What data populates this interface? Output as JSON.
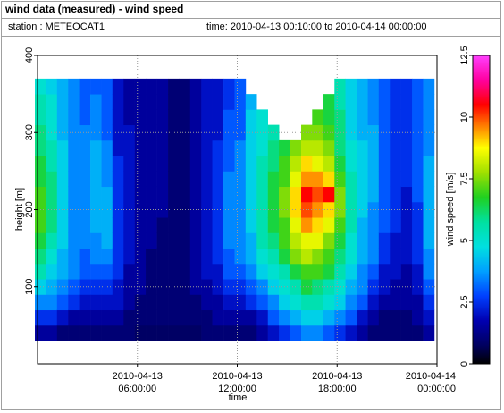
{
  "header": {
    "title": "wind data (measured) - wind speed",
    "station": "station : METEOCAT1",
    "time_range": "time: 2010-04-13 00:10:00 to 2010-04-14 00:00:00"
  },
  "chart_data": {
    "type": "heatmap",
    "title": "wind data (measured) - wind speed",
    "xlabel": "time",
    "ylabel": "height [m]",
    "colorbar_label": "wind speed [m/s]",
    "x_ticks": [
      {
        "hours": 6,
        "label_date": "2010-04-13",
        "label_time": "06:00:00"
      },
      {
        "hours": 12,
        "label_date": "2010-04-13",
        "label_time": "12:00:00"
      },
      {
        "hours": 18,
        "label_date": "2010-04-13",
        "label_time": "18:00:00"
      },
      {
        "hours": 24,
        "label_date": "2010-04-14",
        "label_time": "00:00:00"
      }
    ],
    "xlim_hours": [
      0,
      24
    ],
    "y_ticks": [
      100,
      200,
      300,
      400
    ],
    "ylim": [
      0,
      400
    ],
    "colorbar_ticks": [
      "0",
      "2.5",
      "5",
      "7.5",
      "10",
      "12.5"
    ],
    "colorbar_range": [
      0,
      12.5
    ],
    "grid": true,
    "heights": [
      40,
      60,
      80,
      100,
      120,
      140,
      160,
      180,
      200,
      220,
      240,
      260,
      280,
      300,
      320,
      340,
      360
    ],
    "times_hours": [
      0.17,
      0.83,
      1.5,
      2.17,
      2.83,
      3.5,
      4.17,
      4.83,
      5.5,
      6.17,
      6.83,
      7.5,
      8.17,
      8.83,
      9.5,
      10.17,
      10.83,
      11.5,
      12.17,
      12.83,
      13.5,
      14.17,
      14.83,
      15.5,
      16.17,
      16.83,
      17.5,
      18.17,
      18.83,
      19.5,
      20.17,
      20.83,
      21.5,
      22.17,
      22.83,
      23.5
    ],
    "wind_speed": [
      [
        1.5,
        2.5,
        3.5,
        4.5,
        5.5,
        6.0,
        6.5,
        7.0,
        7.0,
        7.0,
        6.5,
        6.5,
        6.0,
        6.0,
        5.5,
        5.5,
        5.0
      ],
      [
        1.5,
        2.5,
        3.5,
        4.0,
        4.5,
        5.0,
        5.5,
        6.0,
        6.0,
        6.0,
        6.0,
        5.5,
        5.5,
        5.0,
        5.0,
        5.0,
        4.5
      ],
      [
        1.0,
        2.0,
        3.0,
        3.5,
        4.0,
        4.0,
        4.5,
        4.5,
        4.5,
        4.5,
        4.5,
        4.5,
        4.5,
        4.0,
        4.0,
        4.0,
        4.0
      ],
      [
        1.0,
        1.5,
        2.5,
        3.0,
        3.5,
        3.5,
        3.5,
        3.5,
        3.5,
        3.5,
        3.5,
        3.5,
        3.5,
        3.5,
        3.5,
        3.5,
        3.5
      ],
      [
        1.0,
        1.5,
        2.0,
        2.5,
        3.0,
        3.0,
        3.5,
        3.5,
        3.5,
        3.5,
        3.5,
        3.5,
        3.5,
        3.5,
        3.0,
        3.0,
        3.0
      ],
      [
        1.0,
        1.5,
        2.0,
        2.5,
        3.0,
        3.5,
        3.5,
        4.0,
        4.0,
        4.0,
        4.0,
        4.0,
        4.0,
        3.5,
        3.5,
        3.5,
        3.0
      ],
      [
        1.0,
        1.5,
        2.0,
        2.5,
        3.0,
        3.5,
        4.0,
        4.0,
        4.0,
        4.0,
        3.5,
        3.5,
        3.5,
        3.0,
        3.0,
        3.0,
        3.0
      ],
      [
        1.0,
        1.5,
        2.0,
        2.0,
        2.5,
        2.5,
        2.5,
        2.5,
        2.5,
        2.5,
        2.5,
        2.5,
        2.0,
        2.0,
        2.0,
        2.0,
        2.0
      ],
      [
        1.0,
        1.0,
        1.5,
        1.5,
        1.5,
        2.0,
        2.0,
        2.0,
        2.0,
        2.0,
        2.0,
        2.0,
        2.0,
        2.0,
        1.5,
        1.5,
        1.5
      ],
      [
        0.8,
        1.0,
        1.0,
        1.5,
        1.5,
        1.5,
        1.5,
        1.5,
        1.5,
        1.5,
        1.5,
        1.5,
        1.5,
        1.5,
        1.5,
        1.5,
        1.5
      ],
      [
        0.8,
        1.0,
        1.0,
        1.0,
        1.0,
        1.0,
        1.5,
        1.5,
        1.5,
        1.5,
        1.5,
        1.5,
        1.5,
        1.5,
        1.5,
        1.5,
        1.5
      ],
      [
        0.8,
        1.0,
        1.0,
        1.0,
        1.0,
        1.0,
        1.0,
        1.0,
        1.5,
        1.5,
        1.5,
        1.5,
        1.5,
        1.5,
        1.5,
        1.5,
        1.5
      ],
      [
        0.8,
        1.0,
        1.0,
        1.0,
        1.0,
        1.0,
        1.0,
        1.0,
        1.0,
        1.0,
        1.0,
        1.0,
        1.0,
        1.0,
        1.0,
        1.0,
        1.0
      ],
      [
        0.8,
        1.0,
        1.0,
        1.0,
        1.0,
        1.0,
        1.0,
        1.0,
        1.0,
        1.0,
        1.0,
        1.0,
        1.0,
        1.0,
        1.0,
        1.0,
        1.0
      ],
      [
        0.8,
        1.0,
        1.0,
        1.5,
        1.5,
        1.5,
        1.5,
        1.5,
        1.5,
        1.5,
        1.5,
        1.5,
        1.5,
        1.5,
        1.5,
        1.5,
        1.5
      ],
      [
        1.0,
        1.0,
        1.5,
        1.5,
        2.0,
        2.0,
        2.0,
        2.0,
        2.0,
        2.0,
        2.0,
        2.0,
        2.0,
        2.0,
        2.0,
        2.0,
        2.0
      ],
      [
        1.0,
        1.5,
        1.5,
        2.0,
        2.0,
        2.5,
        2.5,
        2.5,
        2.5,
        2.5,
        2.5,
        2.5,
        2.5,
        2.0,
        2.0,
        2.0,
        2.0
      ],
      [
        1.0,
        1.5,
        2.0,
        2.5,
        3.0,
        3.0,
        3.5,
        3.5,
        3.5,
        3.5,
        3.5,
        3.0,
        3.0,
        3.0,
        3.0,
        2.5,
        2.5
      ],
      [
        1.0,
        1.5,
        2.0,
        2.5,
        3.0,
        3.5,
        3.5,
        3.5,
        3.5,
        3.5,
        3.5,
        3.5,
        3.5,
        3.0,
        3.0,
        3.0,
        3.0
      ],
      [
        1.0,
        1.5,
        2.5,
        3.0,
        3.5,
        4.0,
        4.0,
        4.5,
        4.5,
        4.5,
        4.5,
        4.5,
        4.5,
        4.5,
        4.5,
        4.0,
        null
      ],
      [
        1.5,
        2.0,
        3.0,
        3.5,
        4.5,
        5.0,
        5.5,
        5.5,
        5.5,
        5.5,
        5.5,
        5.5,
        5.0,
        5.0,
        5.0,
        null,
        null
      ],
      [
        2.0,
        3.0,
        3.5,
        4.5,
        5.0,
        5.5,
        6.0,
        6.5,
        6.5,
        6.5,
        6.5,
        6.0,
        6.0,
        5.5,
        null,
        null,
        null
      ],
      [
        2.5,
        3.5,
        4.5,
        5.0,
        5.5,
        6.5,
        7.0,
        7.0,
        7.5,
        7.5,
        7.0,
        7.0,
        6.5,
        null,
        null,
        null,
        null
      ],
      [
        3.0,
        4.0,
        5.0,
        5.5,
        6.5,
        7.5,
        8.0,
        8.5,
        9.0,
        9.0,
        8.5,
        8.0,
        7.5,
        null,
        null,
        null,
        null
      ],
      [
        3.5,
        4.5,
        5.5,
        6.5,
        7.0,
        8.0,
        8.5,
        9.5,
        10.0,
        10.5,
        9.5,
        9.0,
        8.0,
        7.5,
        null,
        null,
        null
      ],
      [
        3.5,
        4.5,
        5.5,
        6.0,
        7.0,
        7.5,
        8.5,
        9.0,
        9.5,
        10.0,
        9.5,
        8.5,
        8.0,
        7.5,
        7.0,
        null,
        null
      ],
      [
        3.0,
        4.0,
        5.0,
        5.5,
        6.5,
        7.0,
        7.5,
        8.5,
        9.0,
        10.5,
        9.0,
        8.0,
        7.5,
        7.0,
        6.5,
        6.5,
        null
      ],
      [
        2.5,
        3.5,
        4.5,
        5.0,
        5.5,
        6.0,
        6.5,
        7.0,
        7.5,
        7.5,
        7.0,
        6.5,
        6.0,
        6.0,
        6.0,
        5.5,
        5.5
      ],
      [
        2.0,
        3.0,
        3.5,
        4.0,
        4.5,
        5.0,
        5.0,
        5.5,
        5.5,
        5.5,
        5.5,
        5.0,
        5.0,
        4.5,
        4.5,
        4.5,
        4.5
      ],
      [
        1.5,
        2.0,
        3.0,
        3.5,
        3.5,
        4.0,
        4.0,
        4.0,
        4.5,
        4.5,
        4.5,
        4.5,
        4.5,
        4.0,
        4.0,
        4.0,
        4.0
      ],
      [
        1.0,
        1.5,
        2.0,
        2.5,
        3.0,
        3.5,
        3.5,
        3.5,
        3.5,
        4.0,
        4.0,
        4.0,
        4.0,
        4.0,
        3.5,
        3.5,
        3.5
      ],
      [
        1.0,
        1.0,
        1.5,
        2.0,
        2.0,
        2.5,
        2.5,
        3.0,
        3.0,
        3.0,
        3.0,
        3.0,
        3.0,
        3.0,
        3.0,
        3.0,
        3.0
      ],
      [
        1.0,
        1.0,
        1.5,
        1.5,
        2.0,
        2.0,
        2.0,
        2.5,
        2.5,
        2.5,
        2.5,
        2.5,
        2.5,
        2.5,
        2.5,
        2.5,
        2.5
      ],
      [
        1.0,
        1.0,
        1.5,
        1.5,
        1.5,
        2.0,
        2.0,
        2.0,
        2.0,
        2.0,
        2.5,
        2.5,
        2.5,
        2.5,
        2.5,
        2.5,
        2.5
      ],
      [
        1.0,
        1.5,
        1.5,
        2.0,
        2.0,
        2.5,
        2.5,
        2.5,
        2.5,
        3.0,
        3.0,
        3.0,
        3.0,
        3.0,
        3.0,
        3.0,
        3.0
      ],
      [
        1.5,
        2.0,
        2.5,
        3.0,
        3.5,
        3.5,
        4.0,
        4.0,
        4.0,
        4.0,
        4.0,
        4.0,
        3.5,
        3.5,
        3.5,
        3.5,
        3.5
      ]
    ]
  }
}
